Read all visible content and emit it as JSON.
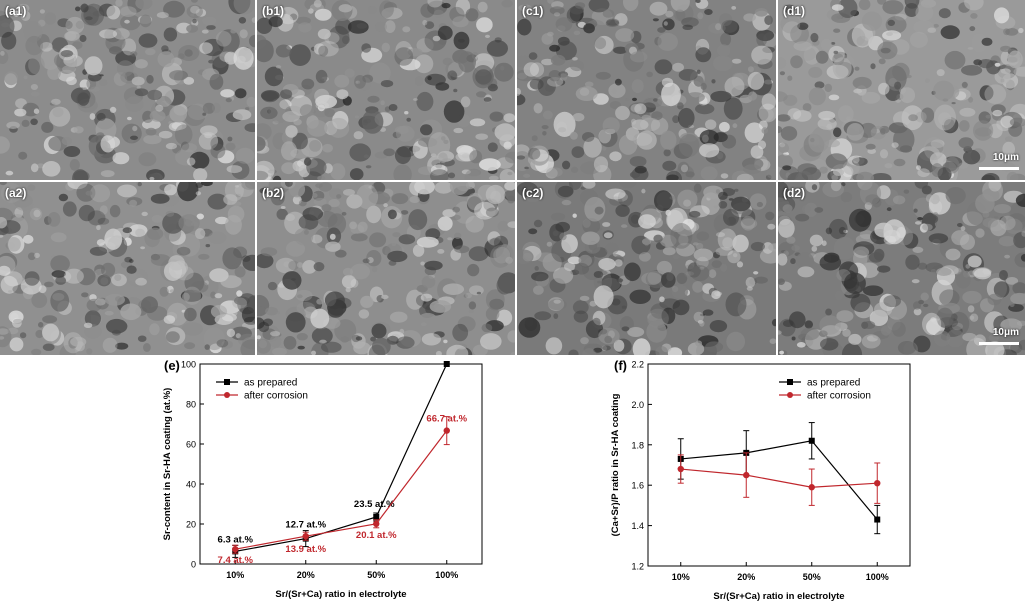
{
  "micrographs": {
    "labels": [
      "(a1)",
      "(b1)",
      "(c1)",
      "(d1)",
      "(a2)",
      "(b2)",
      "(c2)",
      "(d2)"
    ],
    "scale_bar": "10μm",
    "tones": [
      "#8c8c8c",
      "#8a8a8a",
      "#828282",
      "#9a9a9a",
      "#909090",
      "#8e8e8e",
      "#7a7a7a",
      "#7c7c7c"
    ]
  },
  "chart_data": [
    {
      "type": "line",
      "panel_label": "(e)",
      "categories": [
        "10%",
        "20%",
        "50%",
        "100%"
      ],
      "xlabel": "Sr/(Sr+Ca) ratio in electrolyte",
      "ylabel": "Sr-content in Sr-HA coating (at.%)",
      "ylim": [
        0,
        100
      ],
      "yticks": [
        "0",
        "20",
        "40",
        "60",
        "80",
        "100"
      ],
      "legend_position": "top-left",
      "series": [
        {
          "name": "as prepared",
          "color": "#000000",
          "marker": "square",
          "values": [
            6.3,
            12.7,
            23.5,
            100
          ],
          "errors": [
            3,
            4,
            2,
            0
          ],
          "labels": [
            "6.3 at.%",
            "12.7 at.%",
            "23.5 at.%",
            "100 at.%"
          ]
        },
        {
          "name": "after corrosion",
          "color": "#c0272d",
          "marker": "circle",
          "values": [
            7.4,
            13.9,
            20.1,
            66.7
          ],
          "errors": [
            2,
            2,
            2,
            7
          ],
          "labels": [
            "7.4 at.%",
            "13.9 at.%",
            "20.1 at.%",
            "66.7 at.%"
          ]
        }
      ]
    },
    {
      "type": "line",
      "panel_label": "(f)",
      "categories": [
        "10%",
        "20%",
        "50%",
        "100%"
      ],
      "xlabel": "Sr/(Sr+Ca) ratio in electrolyte",
      "ylabel": "(Ca+Sr)/P ratio in Sr-HA coating",
      "ylim": [
        1.2,
        2.2
      ],
      "yticks": [
        "1.2",
        "1.4",
        "1.6",
        "1.8",
        "2.0",
        "2.2"
      ],
      "legend_position": "top-right",
      "series": [
        {
          "name": "as prepared",
          "color": "#000000",
          "marker": "square",
          "values": [
            1.73,
            1.76,
            1.82,
            1.43
          ],
          "errors": [
            0.1,
            0.11,
            0.09,
            0.07
          ]
        },
        {
          "name": "after corrosion",
          "color": "#c0272d",
          "marker": "circle",
          "values": [
            1.68,
            1.65,
            1.59,
            1.61
          ],
          "errors": [
            0.07,
            0.11,
            0.09,
            0.1
          ]
        }
      ]
    }
  ]
}
